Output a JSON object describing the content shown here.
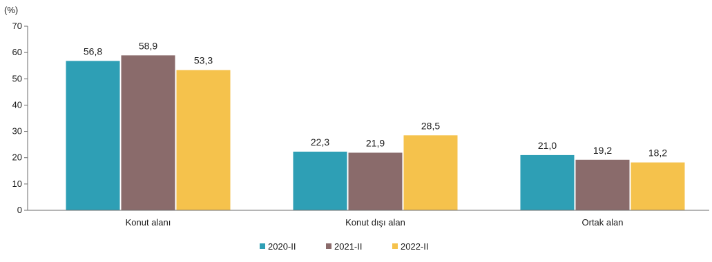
{
  "chart_data": {
    "type": "bar",
    "unit_label": "(%)",
    "categories": [
      "Konut alanı",
      "Konut dışı alan",
      "Ortak alan"
    ],
    "series": [
      {
        "name": "2020-II",
        "color": "#2e9fb5",
        "values": [
          56.8,
          22.3,
          21.0
        ],
        "labels": [
          "56,8",
          "22,3",
          "21,0"
        ]
      },
      {
        "name": "2021-II",
        "color": "#8a6b6b",
        "values": [
          58.9,
          21.9,
          19.2
        ],
        "labels": [
          "58,9",
          "21,9",
          "19,2"
        ]
      },
      {
        "name": "2022-II",
        "color": "#f5c24c",
        "values": [
          53.3,
          28.5,
          18.2
        ],
        "labels": [
          "53,3",
          "28,5",
          "18,2"
        ]
      }
    ],
    "ylim": [
      0,
      70
    ],
    "yticks": [
      0,
      10,
      20,
      30,
      40,
      50,
      60,
      70
    ],
    "grid": false,
    "legend": "bottom-center"
  }
}
